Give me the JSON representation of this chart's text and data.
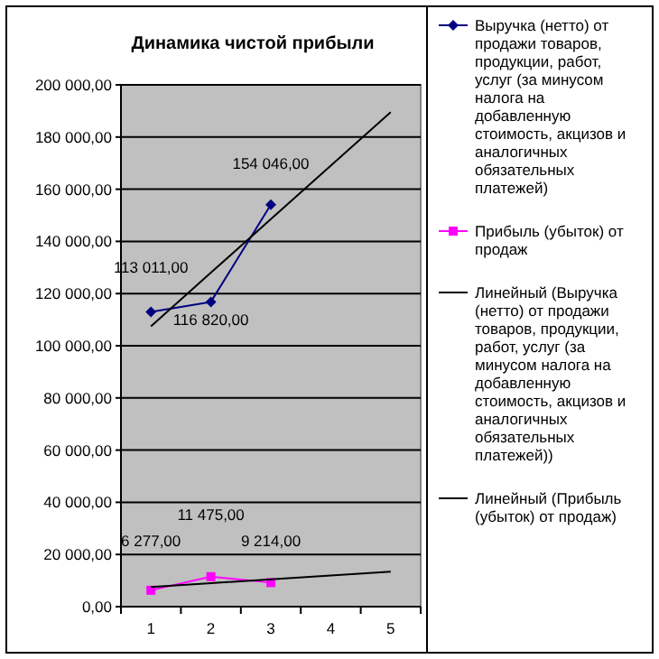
{
  "chart_data": {
    "type": "line",
    "title": "Динамика чистой прибыли",
    "categories": [
      "1",
      "2",
      "3",
      "4",
      "5"
    ],
    "series": [
      {
        "name": "Выручка (нетто) от продажи товаров, продукции, работ, услуг (за минусом налога на добавленную стоимость, акцизов и аналогичных обязательных платежей)",
        "color": "#000080",
        "marker": "diamond",
        "values": [
          113011,
          116820,
          154046,
          null,
          null
        ],
        "value_labels": [
          "113 011,00",
          "116 820,00",
          "154 046,00",
          null,
          null
        ]
      },
      {
        "name": "Прибыль (убыток) от продаж",
        "color": "#ff00ff",
        "marker": "square",
        "values": [
          6277,
          11475,
          9214,
          null,
          null
        ],
        "value_labels": [
          "6 277,00",
          "11 475,00",
          "9 214,00",
          null,
          null
        ]
      },
      {
        "name": "Линейный (Выручка (нетто) от продажи товаров, продукции, работ, услуг (за минусом налога на добавленную стоимость, акцизов и аналогичных обязательных платежей))",
        "color": "#000000",
        "marker": "none",
        "values": [
          107400,
          128000,
          148500,
          169000,
          189500
        ]
      },
      {
        "name": "Линейный (Прибыль (убыток) от продаж)",
        "color": "#000000",
        "marker": "none",
        "values": [
          7500,
          9000,
          10500,
          11900,
          13400
        ]
      }
    ],
    "ylim": [
      0,
      200000
    ],
    "yticks": [
      {
        "value": 0,
        "label": "0,00"
      },
      {
        "value": 20000,
        "label": "20 000,00"
      },
      {
        "value": 40000,
        "label": "40 000,00"
      },
      {
        "value": 60000,
        "label": "60 000,00"
      },
      {
        "value": 80000,
        "label": "80 000,00"
      },
      {
        "value": 100000,
        "label": "100 000,00"
      },
      {
        "value": 120000,
        "label": "120 000,00"
      },
      {
        "value": 140000,
        "label": "140 000,00"
      },
      {
        "value": 160000,
        "label": "160 000,00"
      },
      {
        "value": 180000,
        "label": "180 000,00"
      },
      {
        "value": 200000,
        "label": "200 000,00"
      }
    ],
    "grid": "y",
    "legend": "right"
  }
}
